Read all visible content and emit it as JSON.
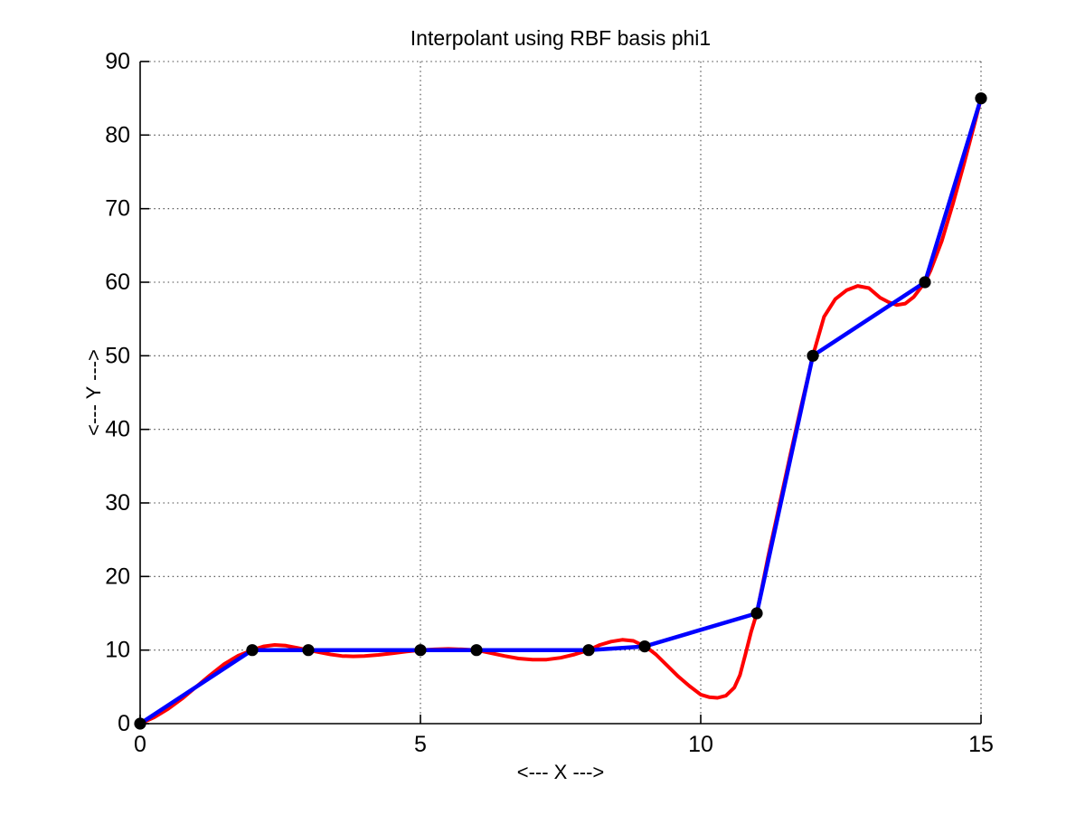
{
  "figure": {
    "background": "#ffffff"
  },
  "chart_data": {
    "type": "line",
    "title": "Interpolant using RBF basis phi1",
    "xlabel": "<--- X --->",
    "ylabel": "<--- Y --->",
    "xlim": [
      0,
      15
    ],
    "ylim": [
      0,
      90
    ],
    "x_ticks": [
      0,
      5,
      10,
      15
    ],
    "y_ticks": [
      0,
      10,
      20,
      30,
      40,
      50,
      60,
      70,
      80,
      90
    ],
    "grid": "dotted",
    "legend": "none",
    "axis_color": "#000000",
    "grid_color": "#444444",
    "series": [
      {
        "name": "rbf_interpolant_curve",
        "type": "smooth",
        "color": "#ff0000",
        "line_width": 4,
        "points": [
          [
            0,
            0
          ],
          [
            0.25,
            0.85
          ],
          [
            0.5,
            2.0
          ],
          [
            0.75,
            3.4
          ],
          [
            1,
            5.0
          ],
          [
            1.25,
            6.6
          ],
          [
            1.5,
            8.1
          ],
          [
            1.75,
            9.25
          ],
          [
            2,
            10
          ],
          [
            2.2,
            10.5
          ],
          [
            2.4,
            10.7
          ],
          [
            2.6,
            10.6
          ],
          [
            2.8,
            10.3
          ],
          [
            3,
            10
          ],
          [
            3.2,
            9.7
          ],
          [
            3.4,
            9.4
          ],
          [
            3.6,
            9.2
          ],
          [
            3.8,
            9.15
          ],
          [
            4,
            9.2
          ],
          [
            4.25,
            9.35
          ],
          [
            4.5,
            9.55
          ],
          [
            4.75,
            9.8
          ],
          [
            5,
            10
          ],
          [
            5.25,
            10.1
          ],
          [
            5.5,
            10.15
          ],
          [
            5.75,
            10.1
          ],
          [
            6,
            10
          ],
          [
            6.25,
            9.6
          ],
          [
            6.5,
            9.2
          ],
          [
            6.75,
            8.85
          ],
          [
            7,
            8.7
          ],
          [
            7.25,
            8.7
          ],
          [
            7.5,
            8.95
          ],
          [
            7.75,
            9.4
          ],
          [
            8,
            10
          ],
          [
            8.2,
            10.7
          ],
          [
            8.4,
            11.15
          ],
          [
            8.6,
            11.4
          ],
          [
            8.8,
            11.25
          ],
          [
            9,
            10.5
          ],
          [
            9.1,
            10.0
          ],
          [
            9.2,
            9.4
          ],
          [
            9.4,
            7.9
          ],
          [
            9.6,
            6.4
          ],
          [
            9.8,
            5.1
          ],
          [
            10,
            3.95
          ],
          [
            10.15,
            3.6
          ],
          [
            10.3,
            3.5
          ],
          [
            10.45,
            3.8
          ],
          [
            10.6,
            4.9
          ],
          [
            10.7,
            6.6
          ],
          [
            10.8,
            9.5
          ],
          [
            10.9,
            12.5
          ],
          [
            11,
            15
          ],
          [
            11.2,
            22.6
          ],
          [
            11.4,
            29.6
          ],
          [
            11.6,
            36.6
          ],
          [
            11.8,
            43.4
          ],
          [
            12,
            50
          ],
          [
            12.2,
            55.3
          ],
          [
            12.4,
            57.7
          ],
          [
            12.6,
            58.9
          ],
          [
            12.8,
            59.5
          ],
          [
            13,
            59.2
          ],
          [
            13.2,
            57.9
          ],
          [
            13.35,
            57.3
          ],
          [
            13.5,
            56.9
          ],
          [
            13.65,
            57.1
          ],
          [
            13.8,
            58.0
          ],
          [
            14,
            60
          ],
          [
            14.1,
            61.6
          ],
          [
            14.3,
            65.6
          ],
          [
            14.5,
            70.7
          ],
          [
            14.7,
            76.2
          ],
          [
            14.9,
            82
          ],
          [
            15,
            85
          ]
        ]
      },
      {
        "name": "data_points_piecewise_linear",
        "type": "line+marker",
        "color": "#0000ff",
        "marker_color": "#000000",
        "line_width": 4.5,
        "marker_radius": 6.6,
        "points": [
          [
            0,
            0
          ],
          [
            2,
            10
          ],
          [
            3,
            10
          ],
          [
            5,
            10
          ],
          [
            6,
            10
          ],
          [
            8,
            10
          ],
          [
            9,
            10.5
          ],
          [
            11,
            15
          ],
          [
            12,
            50
          ],
          [
            14,
            60
          ],
          [
            15,
            85
          ]
        ]
      }
    ]
  }
}
